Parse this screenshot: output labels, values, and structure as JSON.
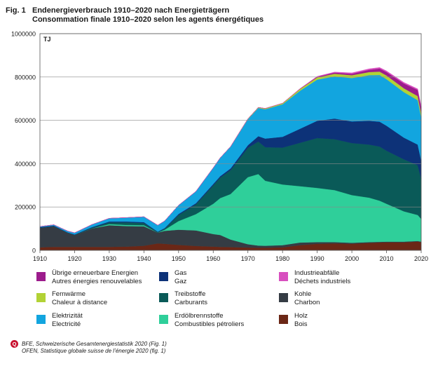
{
  "figure": {
    "label": "Fig. 1",
    "title_de": "Endenergieverbrauch 1910–2020 nach Energieträgern",
    "title_fr": "Consommation finale 1910–2020 selon les agents énergétiques"
  },
  "source": {
    "line1": "BFE, Schweizerische Gesamtenergiestatistik 2020 (Fig. 1)",
    "line2": "OFEN, Statistique globale suisse de l’énergie 2020 (fig. 1)",
    "icon": "q-logo-icon"
  },
  "chart_data": {
    "type": "area",
    "stacked": true,
    "unit_label": "TJ",
    "xlim": [
      1910,
      2020
    ],
    "ylim": [
      0,
      1000000
    ],
    "x_ticks": [
      "1910",
      "1920",
      "1930",
      "1940",
      "1950",
      "1960",
      "1970",
      "1980",
      "1990",
      "2000",
      "2010",
      "2020"
    ],
    "y_ticks": [
      "0",
      "200000",
      "400000",
      "600000",
      "800000",
      "1000000"
    ],
    "grid": "horizontal",
    "legend_position": "bottom",
    "x": [
      1910,
      1914,
      1918,
      1920,
      1925,
      1930,
      1935,
      1940,
      1944,
      1946,
      1950,
      1955,
      1960,
      1962,
      1965,
      1970,
      1973,
      1975,
      1980,
      1985,
      1990,
      1995,
      2000,
      2005,
      2008,
      2010,
      2015,
      2019,
      2020
    ],
    "series": [
      {
        "name_de": "Holz",
        "name_fr": "Bois",
        "color": "#6b2716",
        "values": [
          14000,
          16000,
          16000,
          16000,
          16000,
          16000,
          17000,
          21000,
          32000,
          30000,
          25000,
          20000,
          17000,
          16000,
          15000,
          13000,
          12000,
          12000,
          14000,
          24000,
          30000,
          32000,
          30000,
          34000,
          36000,
          37000,
          37000,
          40000,
          38000
        ]
      },
      {
        "name_de": "Kohle",
        "name_fr": "Charbon",
        "color": "#353c44",
        "values": [
          90000,
          95000,
          65000,
          55000,
          85000,
          100000,
          95000,
          90000,
          50000,
          60000,
          70000,
          72000,
          58000,
          55000,
          35000,
          15000,
          10000,
          9000,
          10000,
          12000,
          8000,
          6000,
          5000,
          4000,
          3000,
          3000,
          3000,
          3000,
          2000
        ]
      },
      {
        "name_de": "Erdölbrennstoffe",
        "name_fr": "Combustibles pétroliers",
        "color": "#2fcf9a",
        "values": [
          0,
          0,
          0,
          0,
          0,
          5000,
          5000,
          5000,
          0,
          5000,
          40000,
          75000,
          140000,
          170000,
          210000,
          310000,
          330000,
          300000,
          280000,
          260000,
          250000,
          240000,
          220000,
          205000,
          190000,
          175000,
          140000,
          120000,
          105000
        ]
      },
      {
        "name_de": "Treibstoffe",
        "name_fr": "Carburants",
        "color": "#0a5a58",
        "values": [
          0,
          0,
          0,
          0,
          3000,
          8000,
          12000,
          10000,
          2000,
          5000,
          28000,
          45000,
          85000,
          95000,
          110000,
          135000,
          150000,
          155000,
          170000,
          200000,
          230000,
          235000,
          240000,
          245000,
          250000,
          245000,
          240000,
          230000,
          185000
        ]
      },
      {
        "name_de": "Gas",
        "name_fr": "Gaz",
        "color": "#0d3278",
        "values": [
          3000,
          3000,
          2000,
          2000,
          3000,
          4000,
          4000,
          4000,
          2000,
          3000,
          5000,
          5000,
          6000,
          6000,
          8000,
          12000,
          25000,
          40000,
          50000,
          65000,
          80000,
          95000,
          100000,
          110000,
          115000,
          115000,
          100000,
          95000,
          85000
        ]
      },
      {
        "name_de": "Elektrizität",
        "name_fr": "Electricité",
        "color": "#12a5df",
        "values": [
          3000,
          4000,
          6000,
          8000,
          12000,
          15000,
          18000,
          25000,
          30000,
          33000,
          40000,
          55000,
          75000,
          85000,
          100000,
          120000,
          130000,
          135000,
          150000,
          175000,
          190000,
          195000,
          200000,
          210000,
          215000,
          215000,
          210000,
          205000,
          200000
        ]
      },
      {
        "name_de": "Fernwärme",
        "name_fr": "Chaleur à distance",
        "color": "#b2d235",
        "values": [
          0,
          0,
          0,
          0,
          0,
          0,
          0,
          0,
          0,
          0,
          0,
          0,
          0,
          0,
          1000,
          2000,
          3000,
          4000,
          5000,
          8000,
          10000,
          12000,
          13000,
          15000,
          16000,
          17000,
          18000,
          19000,
          18000
        ]
      },
      {
        "name_de": "Übrige erneuerbare Energien",
        "name_fr": "Autres énergies renouvelables",
        "color": "#9c1c8c",
        "values": [
          0,
          0,
          0,
          0,
          0,
          0,
          0,
          0,
          0,
          0,
          0,
          0,
          0,
          0,
          0,
          0,
          0,
          0,
          0,
          1000,
          3000,
          5000,
          7000,
          10000,
          14000,
          16000,
          22000,
          28000,
          25000
        ]
      },
      {
        "name_de": "Industrieabfälle",
        "name_fr": "Déchets industriels",
        "color": "#d84fbf",
        "values": [
          0,
          0,
          0,
          0,
          0,
          0,
          0,
          0,
          0,
          0,
          0,
          0,
          0,
          0,
          0,
          0,
          0,
          0,
          0,
          1000,
          2000,
          3000,
          4000,
          5000,
          5000,
          5000,
          5000,
          5000,
          5000
        ]
      }
    ]
  },
  "legend_layout": [
    {
      "series": 7,
      "col": 0,
      "row": 0
    },
    {
      "series": 4,
      "col": 1,
      "row": 0
    },
    {
      "series": 8,
      "col": 2,
      "row": 0
    },
    {
      "series": 6,
      "col": 0,
      "row": 1
    },
    {
      "series": 3,
      "col": 1,
      "row": 1
    },
    {
      "series": 1,
      "col": 2,
      "row": 1
    },
    {
      "series": 5,
      "col": 0,
      "row": 2
    },
    {
      "series": 2,
      "col": 1,
      "row": 2
    },
    {
      "series": 0,
      "col": 2,
      "row": 2
    }
  ]
}
